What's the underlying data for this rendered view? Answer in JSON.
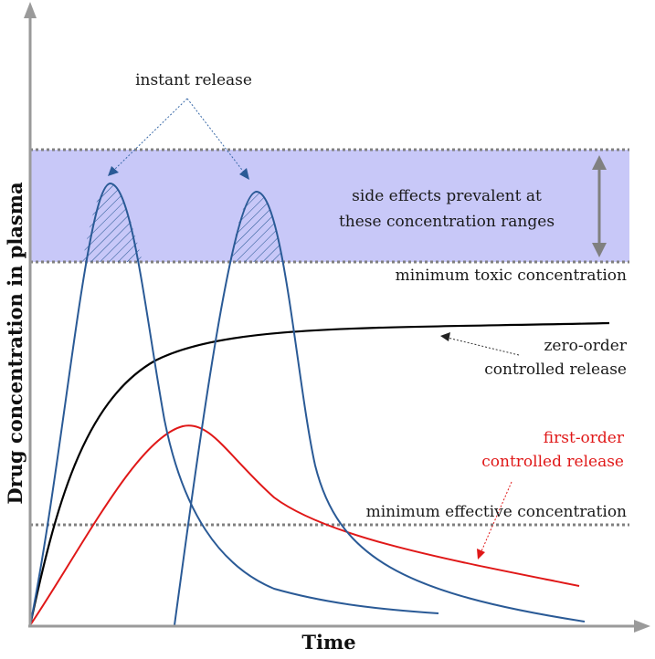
{
  "axes": {
    "x_label": "Time",
    "y_label": "Drug concentration in plasma"
  },
  "labels": {
    "instant_release": "instant release",
    "side_effects_line1": "side effects prevalent at",
    "side_effects_line2": "these concentration ranges",
    "min_toxic": "minimum toxic concentration",
    "zero_order_line1": "zero-order",
    "zero_order_line2": "controlled release",
    "first_order_line1": "first-order",
    "first_order_line2": "controlled release",
    "min_effective": "minimum effective concentration"
  },
  "colors": {
    "band_fill": "#c8c8f8",
    "threshold_line": "#808080",
    "instant_release_curve": "#2a5a96",
    "zero_order_curve": "#000000",
    "first_order_curve": "#e01818",
    "first_order_label": "#e01818",
    "axis": "#9a9a9a",
    "arrow": "#808080"
  }
}
